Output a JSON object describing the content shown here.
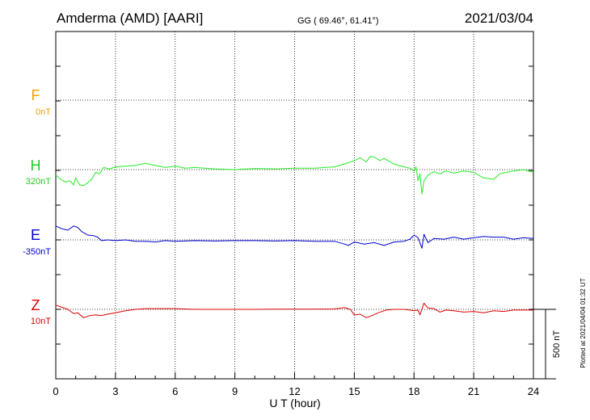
{
  "header": {
    "station": "Amderma (AMD)  [AARI]",
    "coords": "GG ( 69.46°,  61.41°)",
    "date": "2021/03/04"
  },
  "plotted_note": "Plotted at 2021/04/04 01:32 UT",
  "scale_bar_label": "500 nT",
  "colors": {
    "F": "#f0a000",
    "H": "#22ee22",
    "E": "#0000cc",
    "Z": "#dd0000"
  },
  "chart_data": {
    "type": "line",
    "xlabel": "U T (hour)",
    "xlim": [
      0,
      24
    ],
    "xticks": [
      0,
      3,
      6,
      9,
      12,
      15,
      18,
      21,
      24
    ],
    "grid": true,
    "series": [
      {
        "name": "F",
        "offset_label": "0nT",
        "points": []
      },
      {
        "name": "H",
        "offset_label": "320nT",
        "points": [
          [
            0,
            -40
          ],
          [
            0.3,
            -75
          ],
          [
            0.5,
            -90
          ],
          [
            0.7,
            -80
          ],
          [
            0.9,
            -110
          ],
          [
            1.0,
            -60
          ],
          [
            1.2,
            -110
          ],
          [
            1.4,
            -115
          ],
          [
            1.6,
            -95
          ],
          [
            1.8,
            -70
          ],
          [
            2.0,
            -20
          ],
          [
            2.2,
            -30
          ],
          [
            2.4,
            15
          ],
          [
            2.7,
            5
          ],
          [
            3.0,
            20
          ],
          [
            3.5,
            25
          ],
          [
            4.0,
            30
          ],
          [
            4.5,
            45
          ],
          [
            5.0,
            30
          ],
          [
            5.5,
            15
          ],
          [
            6.0,
            25
          ],
          [
            6.5,
            10
          ],
          [
            7.0,
            15
          ],
          [
            8.0,
            5
          ],
          [
            9.0,
            0
          ],
          [
            10.0,
            8
          ],
          [
            11.0,
            5
          ],
          [
            12.0,
            10
          ],
          [
            13.0,
            10
          ],
          [
            14.0,
            20
          ],
          [
            14.5,
            40
          ],
          [
            15.0,
            65
          ],
          [
            15.3,
            85
          ],
          [
            15.6,
            55
          ],
          [
            15.8,
            95
          ],
          [
            16.0,
            90
          ],
          [
            16.3,
            65
          ],
          [
            16.5,
            80
          ],
          [
            17.0,
            40
          ],
          [
            17.5,
            20
          ],
          [
            17.8,
            10
          ],
          [
            18.0,
            -10
          ],
          [
            18.1,
            20
          ],
          [
            18.2,
            -80
          ],
          [
            18.3,
            -30
          ],
          [
            18.4,
            -175
          ],
          [
            18.5,
            -80
          ],
          [
            18.7,
            -40
          ],
          [
            19.0,
            -15
          ],
          [
            19.3,
            -30
          ],
          [
            19.6,
            -10
          ],
          [
            20.0,
            -25
          ],
          [
            20.5,
            -10
          ],
          [
            21.0,
            -20
          ],
          [
            21.5,
            -60
          ],
          [
            22.0,
            -70
          ],
          [
            22.3,
            -30
          ],
          [
            22.6,
            -20
          ],
          [
            23.0,
            -10
          ],
          [
            23.5,
            0
          ],
          [
            24,
            -20
          ]
        ]
      },
      {
        "name": "E",
        "offset_label": "-350nT",
        "points": [
          [
            0,
            100
          ],
          [
            0.3,
            80
          ],
          [
            0.6,
            70
          ],
          [
            0.9,
            100
          ],
          [
            1.1,
            90
          ],
          [
            1.3,
            60
          ],
          [
            1.6,
            35
          ],
          [
            1.9,
            30
          ],
          [
            2.1,
            20
          ],
          [
            2.3,
            -5
          ],
          [
            2.6,
            0
          ],
          [
            3.0,
            -5
          ],
          [
            3.5,
            0
          ],
          [
            4.0,
            -10
          ],
          [
            4.5,
            -10
          ],
          [
            5.0,
            -15
          ],
          [
            5.5,
            -5
          ],
          [
            6.0,
            -10
          ],
          [
            7.0,
            -5
          ],
          [
            8.0,
            -8
          ],
          [
            9.0,
            -5
          ],
          [
            10.0,
            -5
          ],
          [
            11.0,
            -8
          ],
          [
            12.0,
            -5
          ],
          [
            13.0,
            -10
          ],
          [
            14.0,
            -10
          ],
          [
            14.5,
            -30
          ],
          [
            14.7,
            -40
          ],
          [
            15.0,
            -15
          ],
          [
            15.5,
            -30
          ],
          [
            16.0,
            -20
          ],
          [
            16.5,
            -40
          ],
          [
            17.0,
            -15
          ],
          [
            17.5,
            -10
          ],
          [
            17.8,
            5
          ],
          [
            18.0,
            35
          ],
          [
            18.2,
            15
          ],
          [
            18.4,
            -60
          ],
          [
            18.5,
            40
          ],
          [
            18.7,
            -20
          ],
          [
            19.0,
            10
          ],
          [
            19.5,
            5
          ],
          [
            20.0,
            20
          ],
          [
            20.5,
            5
          ],
          [
            21.0,
            15
          ],
          [
            21.5,
            25
          ],
          [
            22.0,
            20
          ],
          [
            22.5,
            20
          ],
          [
            23.0,
            5
          ],
          [
            23.5,
            15
          ],
          [
            24,
            10
          ]
        ]
      },
      {
        "name": "Z",
        "offset_label": "10nT",
        "points": [
          [
            0,
            30
          ],
          [
            0.3,
            15
          ],
          [
            0.6,
            0
          ],
          [
            0.9,
            -30
          ],
          [
            1.1,
            -25
          ],
          [
            1.4,
            -60
          ],
          [
            1.7,
            -45
          ],
          [
            2.0,
            -40
          ],
          [
            2.3,
            -45
          ],
          [
            2.6,
            -35
          ],
          [
            3.0,
            -25
          ],
          [
            3.5,
            -10
          ],
          [
            4.0,
            0
          ],
          [
            4.5,
            5
          ],
          [
            5.0,
            5
          ],
          [
            5.5,
            5
          ],
          [
            6.0,
            5
          ],
          [
            7.0,
            0
          ],
          [
            8.0,
            0
          ],
          [
            9.0,
            0
          ],
          [
            10.0,
            0
          ],
          [
            11.0,
            2
          ],
          [
            12.0,
            2
          ],
          [
            13.0,
            2
          ],
          [
            14.0,
            3
          ],
          [
            14.5,
            12
          ],
          [
            14.8,
            0
          ],
          [
            15.0,
            -40
          ],
          [
            15.3,
            -35
          ],
          [
            15.6,
            -60
          ],
          [
            15.9,
            -45
          ],
          [
            16.2,
            -25
          ],
          [
            16.6,
            -5
          ],
          [
            17.0,
            0
          ],
          [
            17.5,
            0
          ],
          [
            17.8,
            -5
          ],
          [
            18.0,
            -10
          ],
          [
            18.2,
            -5
          ],
          [
            18.3,
            -40
          ],
          [
            18.5,
            45
          ],
          [
            18.7,
            10
          ],
          [
            19.0,
            5
          ],
          [
            19.3,
            -20
          ],
          [
            19.6,
            -5
          ],
          [
            20.0,
            -10
          ],
          [
            20.5,
            -20
          ],
          [
            21.0,
            -15
          ],
          [
            21.5,
            -25
          ],
          [
            22.0,
            -10
          ],
          [
            22.5,
            -15
          ],
          [
            23.0,
            -5
          ],
          [
            23.5,
            -5
          ],
          [
            24,
            -5
          ]
        ]
      }
    ]
  }
}
